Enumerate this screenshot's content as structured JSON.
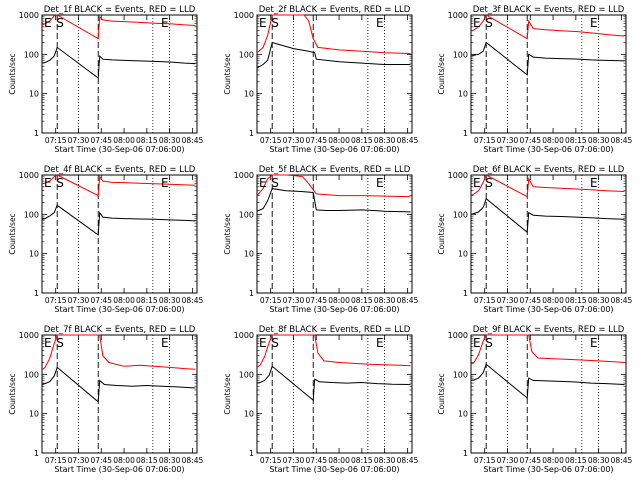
{
  "chart_data": [
    {
      "type": "line",
      "title": "Det_1f BLACK = Events, RED = LLD",
      "ylabel": "Counts/sec",
      "xlabel": "Start Time (30-Sep-06 07:06:00)",
      "xlim": [
        "07:06",
        "08:48"
      ],
      "ylim": [
        1,
        1000
      ],
      "yscale": "log",
      "x_ticks": [
        "07:15",
        "07:30",
        "07:45",
        "08:00",
        "08:15",
        "08:30",
        "08:45"
      ],
      "y_ticks": [
        "1",
        "10",
        "100",
        "1000"
      ],
      "markers": [
        {
          "label": "E",
          "time": "07:06"
        },
        {
          "label": "S",
          "time": "07:16"
        },
        {
          "label": "E",
          "time": "08:23"
        }
      ],
      "series": [
        {
          "color": "#000000",
          "x": [
            "07:06",
            "07:08",
            "07:11",
            "07:14",
            "07:16",
            "07:43",
            "07:44",
            "07:46",
            "07:52",
            "08:00",
            "08:10",
            "08:20",
            "08:30",
            "08:40",
            "08:47"
          ],
          "values": [
            60,
            62,
            70,
            90,
            150,
            25,
            90,
            75,
            72,
            70,
            68,
            66,
            64,
            60,
            58
          ]
        },
        {
          "color": "#ff0000",
          "x": [
            "07:06",
            "07:08",
            "07:11",
            "07:14",
            "07:16",
            "07:43",
            "07:44",
            "07:46",
            "07:52",
            "08:00",
            "08:10",
            "08:20",
            "08:30",
            "08:40",
            "08:47"
          ],
          "values": [
            550,
            600,
            700,
            950,
            1000,
            250,
            900,
            750,
            700,
            680,
            650,
            620,
            600,
            560,
            540
          ]
        }
      ]
    },
    {
      "type": "line",
      "title": "Det_2f BLACK = Events, RED = LLD",
      "ylabel": "Counts/sec",
      "xlabel": "Start Time (30-Sep-06 07:06:00)",
      "xlim": [
        "07:06",
        "08:48"
      ],
      "ylim": [
        1,
        1000
      ],
      "yscale": "log",
      "x_ticks": [
        "07:15",
        "07:30",
        "07:45",
        "08:00",
        "08:15",
        "08:30",
        "08:45"
      ],
      "y_ticks": [
        "1",
        "10",
        "100",
        "1000"
      ],
      "markers": [
        {
          "label": "E",
          "time": "07:06"
        },
        {
          "label": "S",
          "time": "07:16"
        },
        {
          "label": "E",
          "time": "08:23"
        }
      ],
      "series": [
        {
          "color": "#000000",
          "x": [
            "07:06",
            "07:10",
            "07:13",
            "07:16",
            "07:30",
            "07:40",
            "07:44",
            "07:45",
            "07:52",
            "08:00",
            "08:15",
            "08:30",
            "08:47"
          ],
          "values": [
            45,
            55,
            70,
            200,
            140,
            120,
            110,
            75,
            70,
            65,
            60,
            55,
            55
          ]
        },
        {
          "color": "#ff0000",
          "x": [
            "07:06",
            "07:10",
            "07:13",
            "07:16",
            "07:30",
            "07:37",
            "07:40",
            "07:43",
            "07:46",
            "08:00",
            "08:15",
            "08:30",
            "08:47"
          ],
          "values": [
            110,
            150,
            300,
            1000,
            1000,
            1000,
            700,
            250,
            150,
            130,
            120,
            110,
            105
          ]
        }
      ]
    },
    {
      "type": "line",
      "title": "Det_3f BLACK = Events, RED = LLD",
      "ylabel": "Counts/sec",
      "xlabel": "Start Time (30-Sep-06 07:06:00)",
      "xlim": [
        "07:06",
        "08:48"
      ],
      "ylim": [
        1,
        1000
      ],
      "yscale": "log",
      "x_ticks": [
        "07:15",
        "07:30",
        "07:45",
        "08:00",
        "08:15",
        "08:30",
        "08:45"
      ],
      "y_ticks": [
        "1",
        "10",
        "100",
        "1000"
      ],
      "markers": [
        {
          "label": "E",
          "time": "07:06"
        },
        {
          "label": "S",
          "time": "07:16"
        },
        {
          "label": "E",
          "time": "08:23"
        }
      ],
      "series": [
        {
          "color": "#000000",
          "x": [
            "07:06",
            "07:08",
            "07:11",
            "07:14",
            "07:16",
            "07:43",
            "07:44",
            "07:47",
            "07:55",
            "08:05",
            "08:15",
            "08:25",
            "08:35",
            "08:47"
          ],
          "values": [
            90,
            95,
            100,
            120,
            200,
            30,
            100,
            85,
            80,
            78,
            76,
            72,
            70,
            68
          ]
        },
        {
          "color": "#ff0000",
          "x": [
            "07:06",
            "07:08",
            "07:11",
            "07:14",
            "07:16",
            "07:43",
            "07:44",
            "07:47",
            "07:55",
            "08:05",
            "08:15",
            "08:25",
            "08:35",
            "08:47"
          ],
          "values": [
            380,
            420,
            500,
            700,
            1000,
            250,
            700,
            450,
            420,
            400,
            380,
            350,
            320,
            290
          ]
        }
      ]
    },
    {
      "type": "line",
      "title": "Det_4f BLACK = Events, RED = LLD",
      "ylabel": "Counts/sec",
      "xlabel": "Start Time (30-Sep-06 07:06:00)",
      "xlim": [
        "07:06",
        "08:48"
      ],
      "ylim": [
        1,
        1000
      ],
      "yscale": "log",
      "x_ticks": [
        "07:15",
        "07:30",
        "07:45",
        "08:00",
        "08:15",
        "08:30",
        "08:45"
      ],
      "y_ticks": [
        "1",
        "10",
        "100",
        "1000"
      ],
      "markers": [
        {
          "label": "E",
          "time": "07:06"
        },
        {
          "label": "S",
          "time": "07:16"
        },
        {
          "label": "E",
          "time": "08:23"
        }
      ],
      "series": [
        {
          "color": "#000000",
          "x": [
            "07:06",
            "07:08",
            "07:11",
            "07:14",
            "07:16",
            "07:43",
            "07:44",
            "07:46",
            "07:52",
            "08:00",
            "08:10",
            "08:20",
            "08:30",
            "08:40",
            "08:47"
          ],
          "values": [
            75,
            78,
            90,
            110,
            170,
            30,
            110,
            85,
            80,
            78,
            76,
            75,
            72,
            70,
            68
          ]
        },
        {
          "color": "#ff0000",
          "x": [
            "07:06",
            "07:08",
            "07:11",
            "07:14",
            "07:16",
            "07:43",
            "07:44",
            "07:46",
            "07:52",
            "08:00",
            "08:10",
            "08:20",
            "08:30",
            "08:40",
            "08:47"
          ],
          "values": [
            600,
            620,
            700,
            900,
            1000,
            300,
            900,
            700,
            650,
            640,
            620,
            600,
            580,
            560,
            550
          ]
        }
      ]
    },
    {
      "type": "line",
      "title": "Det_5f BLACK = Events, RED = LLD",
      "ylabel": "Counts/sec",
      "xlabel": "Start Time (30-Sep-06 07:06:00)",
      "xlim": [
        "07:06",
        "08:48"
      ],
      "ylim": [
        1,
        1000
      ],
      "yscale": "log",
      "x_ticks": [
        "07:15",
        "07:30",
        "07:45",
        "08:00",
        "08:15",
        "08:30",
        "08:45"
      ],
      "y_ticks": [
        "1",
        "10",
        "100",
        "1000"
      ],
      "markers": [
        {
          "label": "E",
          "time": "07:06"
        },
        {
          "label": "S",
          "time": "07:16"
        },
        {
          "label": "E",
          "time": "08:23"
        }
      ],
      "series": [
        {
          "color": "#000000",
          "x": [
            "07:06",
            "07:10",
            "07:13",
            "07:16",
            "07:25",
            "07:35",
            "07:43",
            "07:45",
            "07:52",
            "08:00",
            "08:15",
            "08:30",
            "08:47"
          ],
          "values": [
            120,
            140,
            220,
            450,
            400,
            380,
            360,
            130,
            125,
            125,
            130,
            120,
            115
          ]
        },
        {
          "color": "#ff0000",
          "x": [
            "07:06",
            "07:10",
            "07:13",
            "07:16",
            "07:22",
            "07:26",
            "07:32",
            "07:36",
            "07:40",
            "07:45",
            "08:00",
            "08:15",
            "08:30",
            "08:47"
          ],
          "values": [
            300,
            450,
            800,
            1000,
            1000,
            1000,
            950,
            900,
            600,
            330,
            300,
            300,
            290,
            280
          ]
        }
      ]
    },
    {
      "type": "line",
      "title": "Det_6f BLACK = Events, RED = LLD",
      "ylabel": "Counts/sec",
      "xlabel": "Start Time (30-Sep-06 07:06:00)",
      "xlim": [
        "07:06",
        "08:48"
      ],
      "ylim": [
        1,
        1000
      ],
      "yscale": "log",
      "x_ticks": [
        "07:15",
        "07:30",
        "07:45",
        "08:00",
        "08:15",
        "08:30",
        "08:45"
      ],
      "y_ticks": [
        "1",
        "10",
        "100",
        "1000"
      ],
      "markers": [
        {
          "label": "E",
          "time": "07:06"
        },
        {
          "label": "S",
          "time": "07:16"
        },
        {
          "label": "E",
          "time": "08:23"
        }
      ],
      "series": [
        {
          "color": "#000000",
          "x": [
            "07:06",
            "07:08",
            "07:11",
            "07:14",
            "07:16",
            "07:43",
            "07:44",
            "07:47",
            "07:55",
            "08:05",
            "08:15",
            "08:25",
            "08:35",
            "08:47"
          ],
          "values": [
            100,
            105,
            115,
            150,
            250,
            35,
            110,
            95,
            90,
            88,
            85,
            82,
            78,
            75
          ]
        },
        {
          "color": "#ff0000",
          "x": [
            "07:06",
            "07:08",
            "07:11",
            "07:14",
            "07:16",
            "07:43",
            "07:44",
            "07:47",
            "07:55",
            "08:05",
            "08:15",
            "08:25",
            "08:35",
            "08:47"
          ],
          "values": [
            300,
            330,
            400,
            650,
            1000,
            280,
            800,
            500,
            480,
            460,
            440,
            420,
            400,
            380
          ]
        }
      ]
    },
    {
      "type": "line",
      "title": "Det_7f BLACK = Events, RED = LLD",
      "ylabel": "Counts/sec",
      "xlabel": "Start Time (30-Sep-06 07:06:00)",
      "xlim": [
        "07:06",
        "08:48"
      ],
      "ylim": [
        1,
        1000
      ],
      "yscale": "log",
      "x_ticks": [
        "07:15",
        "07:30",
        "07:45",
        "08:00",
        "08:15",
        "08:30",
        "08:45"
      ],
      "y_ticks": [
        "1",
        "10",
        "100",
        "1000"
      ],
      "markers": [
        {
          "label": "E",
          "time": "07:06"
        },
        {
          "label": "S",
          "time": "07:16"
        },
        {
          "label": "E",
          "time": "08:23"
        }
      ],
      "series": [
        {
          "color": "#000000",
          "x": [
            "07:06",
            "07:08",
            "07:11",
            "07:14",
            "07:16",
            "07:43",
            "07:44",
            "07:47",
            "07:55",
            "08:05",
            "08:15",
            "08:25",
            "08:35",
            "08:47"
          ],
          "values": [
            55,
            58,
            65,
            90,
            150,
            20,
            70,
            55,
            52,
            50,
            52,
            50,
            48,
            45
          ]
        },
        {
          "color": "#ff0000",
          "x": [
            "07:06",
            "07:08",
            "07:11",
            "07:14",
            "07:16",
            "07:43",
            "07:44",
            "07:46",
            "07:50",
            "08:00",
            "08:10",
            "08:20",
            "08:30",
            "08:40",
            "08:47"
          ],
          "values": [
            130,
            150,
            250,
            600,
            1000,
            1000,
            1000,
            300,
            200,
            160,
            170,
            160,
            150,
            140,
            135
          ]
        }
      ]
    },
    {
      "type": "line",
      "title": "Det_8f BLACK = Events, RED = LLD",
      "ylabel": "Counts/sec",
      "xlabel": "Start Time (30-Sep-06 07:06:00)",
      "xlim": [
        "07:06",
        "08:48"
      ],
      "ylim": [
        1,
        1000
      ],
      "yscale": "log",
      "x_ticks": [
        "07:15",
        "07:30",
        "07:45",
        "08:00",
        "08:15",
        "08:30",
        "08:45"
      ],
      "y_ticks": [
        "1",
        "10",
        "100",
        "1000"
      ],
      "markers": [
        {
          "label": "E",
          "time": "07:06"
        },
        {
          "label": "S",
          "time": "07:16"
        },
        {
          "label": "E",
          "time": "08:23"
        }
      ],
      "series": [
        {
          "color": "#000000",
          "x": [
            "07:06",
            "07:08",
            "07:11",
            "07:14",
            "07:16",
            "07:43",
            "07:44",
            "07:47",
            "07:55",
            "08:05",
            "08:15",
            "08:25",
            "08:35",
            "08:47"
          ],
          "values": [
            60,
            62,
            70,
            95,
            160,
            22,
            75,
            65,
            62,
            60,
            62,
            58,
            56,
            55
          ]
        },
        {
          "color": "#ff0000",
          "x": [
            "07:06",
            "07:08",
            "07:11",
            "07:14",
            "07:16",
            "07:43",
            "07:44",
            "07:46",
            "07:50",
            "08:00",
            "08:10",
            "08:20",
            "08:30",
            "08:40",
            "08:47"
          ],
          "values": [
            150,
            170,
            280,
            650,
            1000,
            1000,
            1000,
            350,
            220,
            200,
            190,
            180,
            175,
            170,
            165
          ]
        }
      ]
    },
    {
      "type": "line",
      "title": "Det_9f BLACK = Events, RED = LLD",
      "ylabel": "Counts/sec",
      "xlabel": "Start Time (30-Sep-06 07:06:00)",
      "xlim": [
        "07:06",
        "08:48"
      ],
      "ylim": [
        1,
        1000
      ],
      "yscale": "log",
      "x_ticks": [
        "07:15",
        "07:30",
        "07:45",
        "08:00",
        "08:15",
        "08:30",
        "08:45"
      ],
      "y_ticks": [
        "1",
        "10",
        "100",
        "1000"
      ],
      "markers": [
        {
          "label": "E",
          "time": "07:06"
        },
        {
          "label": "S",
          "time": "07:16"
        },
        {
          "label": "E",
          "time": "08:23"
        }
      ],
      "series": [
        {
          "color": "#000000",
          "x": [
            "07:06",
            "07:08",
            "07:11",
            "07:14",
            "07:16",
            "07:43",
            "07:44",
            "07:47",
            "07:55",
            "08:05",
            "08:15",
            "08:25",
            "08:35",
            "08:47"
          ],
          "values": [
            70,
            72,
            80,
            110,
            180,
            25,
            80,
            70,
            68,
            66,
            64,
            60,
            58,
            55
          ]
        },
        {
          "color": "#ff0000",
          "x": [
            "07:06",
            "07:08",
            "07:11",
            "07:14",
            "07:16",
            "07:43",
            "07:44",
            "07:46",
            "07:50",
            "08:00",
            "08:10",
            "08:20",
            "08:30",
            "08:40",
            "08:47"
          ],
          "values": [
            180,
            200,
            320,
            700,
            1000,
            1000,
            1000,
            380,
            260,
            250,
            240,
            230,
            220,
            210,
            200
          ]
        }
      ]
    }
  ]
}
